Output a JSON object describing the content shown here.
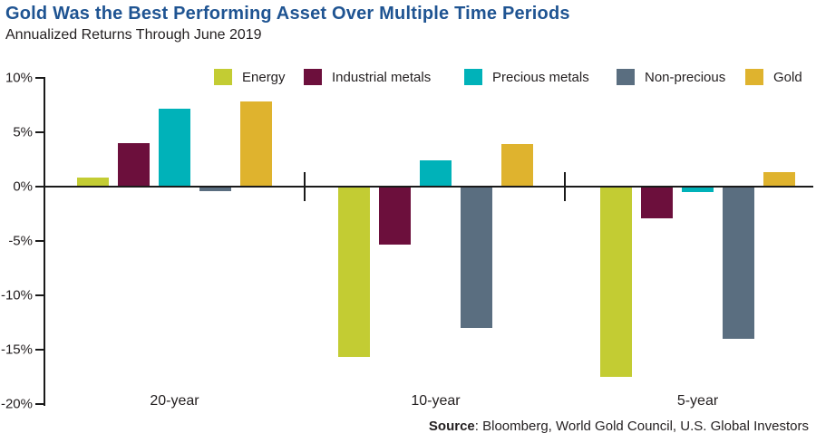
{
  "chart_data": {
    "type": "bar",
    "title": "Gold Was the Best Performing Asset Over Multiple Time Periods",
    "subtitle": "Annualized Returns Through June 2019",
    "categories": [
      "20-year",
      "10-year",
      "5-year"
    ],
    "series": [
      {
        "name": "Energy",
        "color": "#c3cc33",
        "values": [
          0.8,
          -15.7,
          -17.5
        ]
      },
      {
        "name": "Industrial metals",
        "color": "#6c0f3c",
        "values": [
          4.0,
          -5.3,
          -2.9
        ]
      },
      {
        "name": "Precious metals",
        "color": "#00b2b9",
        "values": [
          7.2,
          2.4,
          -0.5
        ]
      },
      {
        "name": "Non-precious",
        "color": "#5a6e80",
        "values": [
          -0.4,
          -13.0,
          -14.0
        ]
      },
      {
        "name": "Gold",
        "color": "#dfb32e",
        "values": [
          7.8,
          3.9,
          1.3
        ]
      }
    ],
    "xlabel": "",
    "ylabel": "",
    "ylim": [
      -20,
      10
    ],
    "yticks": [
      {
        "label": "10%",
        "value": 10
      },
      {
        "label": "5%",
        "value": 5
      },
      {
        "label": "0%",
        "value": 0
      },
      {
        "label": "-5%",
        "value": -5
      },
      {
        "label": "-10%",
        "value": -10
      },
      {
        "label": "-15%",
        "value": -15
      },
      {
        "label": "-20%",
        "value": -20
      }
    ],
    "legend_position": "top",
    "grid": false
  },
  "source": {
    "label": "Source",
    "text": ": Bloomberg, World Gold Council, U.S. Global Investors"
  },
  "colors": {
    "title": "#1f5492",
    "text": "#231f20",
    "axis": "#1a1a1a"
  }
}
